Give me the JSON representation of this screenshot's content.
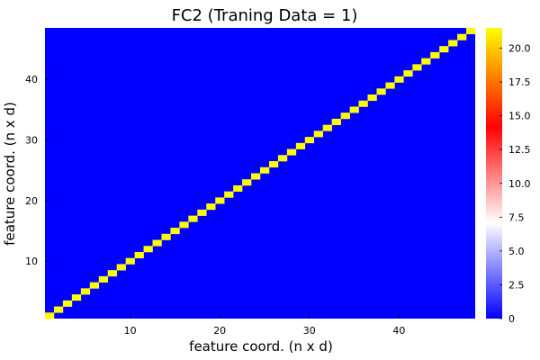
{
  "chart_data": {
    "type": "heatmap",
    "title": "FC2 (Traning Data = 1)",
    "xlabel": "feature coord. (n x d)",
    "ylabel": "feature coord. (n x d)",
    "x_range": [
      1,
      48
    ],
    "y_range": [
      1,
      48
    ],
    "xlim": [
      0.5,
      48.5
    ],
    "ylim": [
      0.5,
      48.5
    ],
    "x_ticks": [
      10,
      20,
      30,
      40
    ],
    "y_ticks": [
      10,
      20,
      30,
      40
    ],
    "background_value": 0,
    "diagonal_value": 21.5,
    "description_of_pattern": "diagonal cells (i, i) for i = 1..48 equal the diagonal value; all other cells equal the background value",
    "grid": false,
    "colorbar": {
      "range": [
        0,
        21.5
      ],
      "ticks": [
        0,
        2.5,
        5.0,
        7.5,
        10.0,
        12.5,
        15.0,
        17.5,
        20.0
      ],
      "tick_labels": [
        "0",
        "2.5",
        "5.0",
        "7.5",
        "10.0",
        "12.5",
        "15.0",
        "17.5",
        "20.0"
      ],
      "colors": [
        "#0000ff",
        "#ffffff",
        "#ff0000",
        "#ffff00"
      ],
      "stops": [
        0,
        0.33,
        0.66,
        1
      ]
    }
  }
}
